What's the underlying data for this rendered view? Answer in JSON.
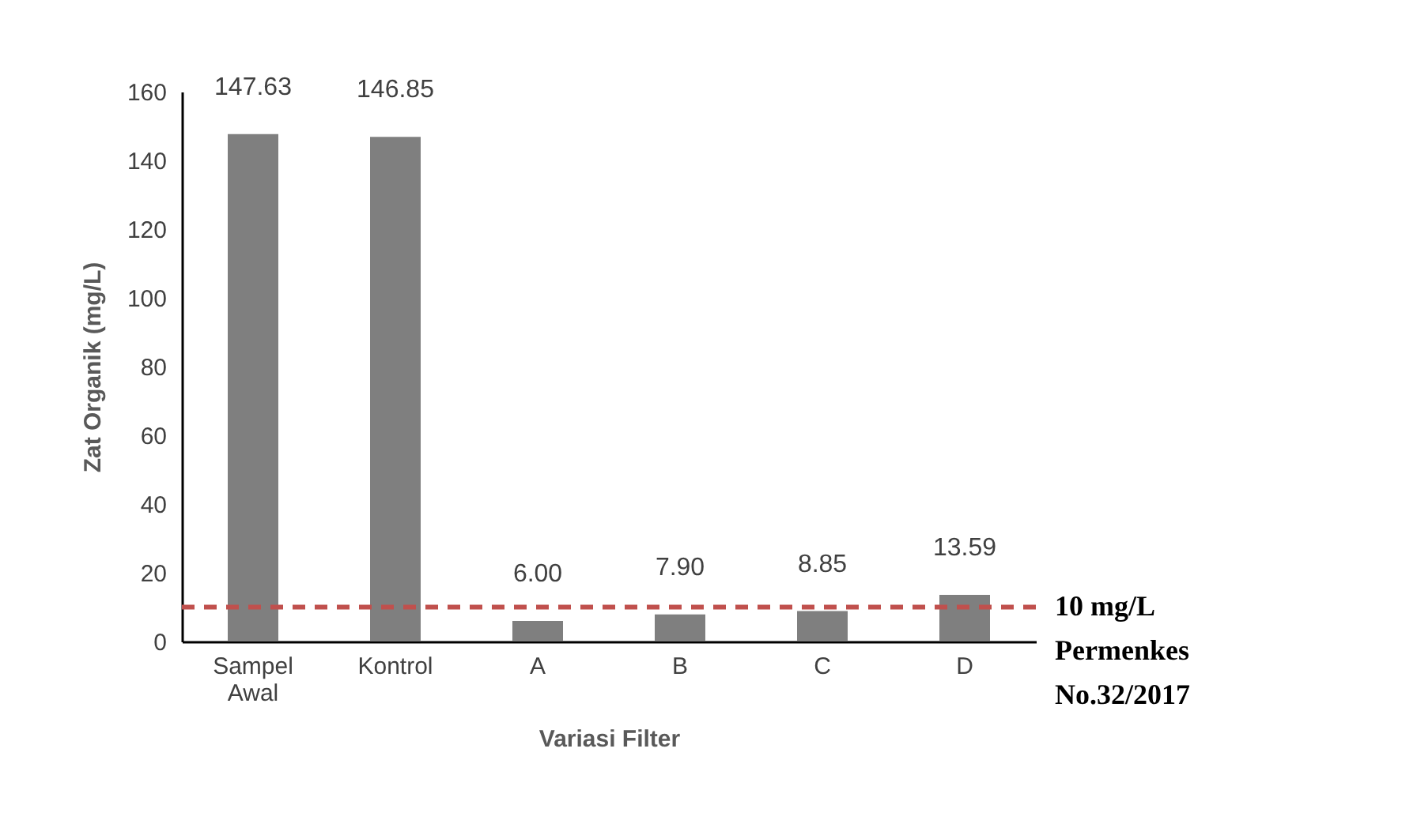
{
  "chart_data": {
    "type": "bar",
    "xlabel": "Variasi Filter",
    "ylabel": "Zat Organik (mg/L)",
    "categories": [
      "Sampel Awal",
      "Kontrol",
      "A",
      "B",
      "C",
      "D"
    ],
    "values": [
      147.63,
      146.85,
      6.0,
      7.9,
      8.85,
      13.59
    ],
    "color": "#7f7f7f",
    "value_labels": [
      "147.63",
      "146.85",
      "6.00",
      "7.90",
      "8.85",
      "13.59"
    ],
    "ylim": [
      0,
      160
    ],
    "yticks": [
      0,
      20,
      40,
      60,
      80,
      100,
      120,
      140,
      160
    ],
    "grid": false,
    "ref_lines": [
      {
        "axis": "y",
        "value": 10,
        "label": "10 mg/L\nPermenkes\nNo.32/2017",
        "color": "#c0504d",
        "line_style": "dashed"
      }
    ]
  }
}
